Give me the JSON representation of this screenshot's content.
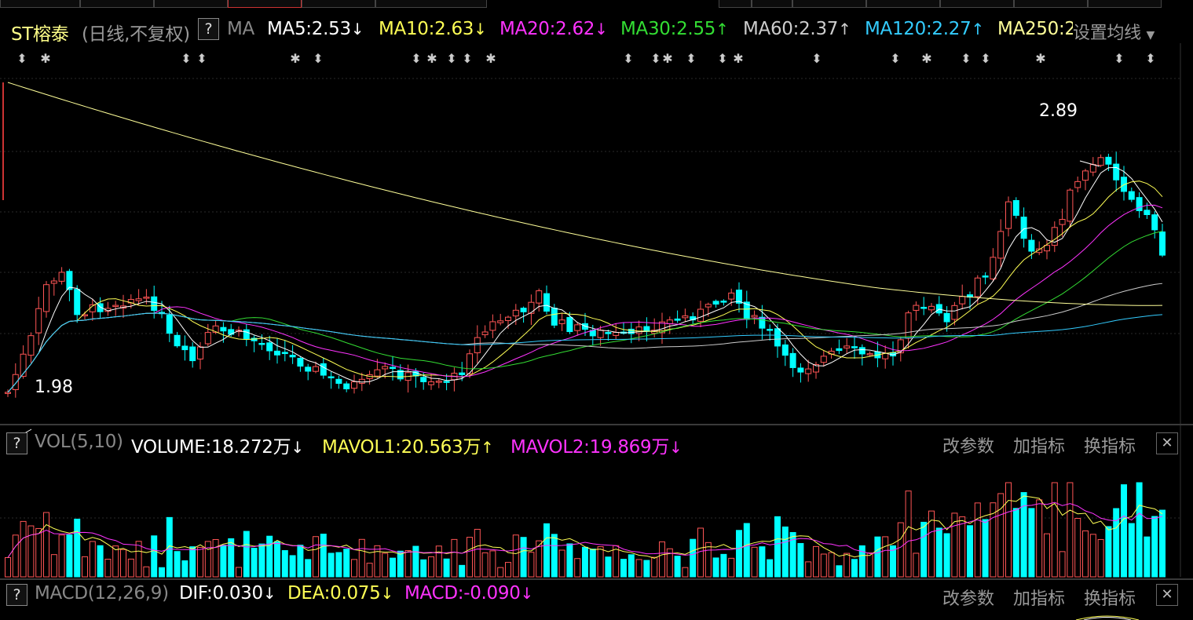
{
  "stock": {
    "name": "ST榕泰",
    "period_label": "(日线,不复权)",
    "help_label": "?",
    "ma_label": "MA",
    "settings_label": "设置均线"
  },
  "ma_lines": [
    {
      "label": "MA5:2.53",
      "arrow": "↓",
      "color": "#ffffff"
    },
    {
      "label": "MA10:2.63",
      "arrow": "↓",
      "color": "#ffff55"
    },
    {
      "label": "MA20:2.62",
      "arrow": "↓",
      "color": "#ff33ff"
    },
    {
      "label": "MA30:2.55",
      "arrow": "↑",
      "color": "#33dd33"
    },
    {
      "label": "MA60:2.37",
      "arrow": "↑",
      "color": "#cccccc"
    },
    {
      "label": "MA120:2.27",
      "arrow": "↑",
      "color": "#33ccff"
    },
    {
      "label": "MA250:2",
      "arrow": "",
      "color": "#ffff99"
    }
  ],
  "price_annotations": {
    "high": "2.89",
    "low": "1.98"
  },
  "vol_panel": {
    "help_label": "?",
    "title": "VOL(5,10)",
    "volume": "VOLUME:18.272万",
    "volume_arrow": "↓",
    "mavol1": "MAVOL1:20.563万",
    "mavol1_arrow": "↑",
    "mavol2": "MAVOL2:19.869万",
    "mavol2_arrow": "↓",
    "btn_params": "改参数",
    "btn_add": "加指标",
    "btn_switch": "换指标",
    "btn_close": "✕"
  },
  "macd_panel": {
    "help_label": "?",
    "title": "MACD(12,26,9)",
    "dif": "DIF:0.030",
    "dif_arrow": "↓",
    "dea": "DEA:0.075",
    "dea_arrow": "↓",
    "macd": "MACD:-0.090",
    "macd_arrow": "↓",
    "btn_params": "改参数",
    "btn_add": "加指标",
    "btn_switch": "换指标",
    "btn_close": "✕"
  },
  "colors": {
    "up": "#ff5555",
    "down": "#00ffff",
    "ma5": "#ffffff",
    "ma10": "#ffff55",
    "ma20": "#ff33ff",
    "ma30": "#33dd33",
    "ma60": "#cccccc",
    "ma120": "#33ccff",
    "ma250": "#ffff99"
  }
}
